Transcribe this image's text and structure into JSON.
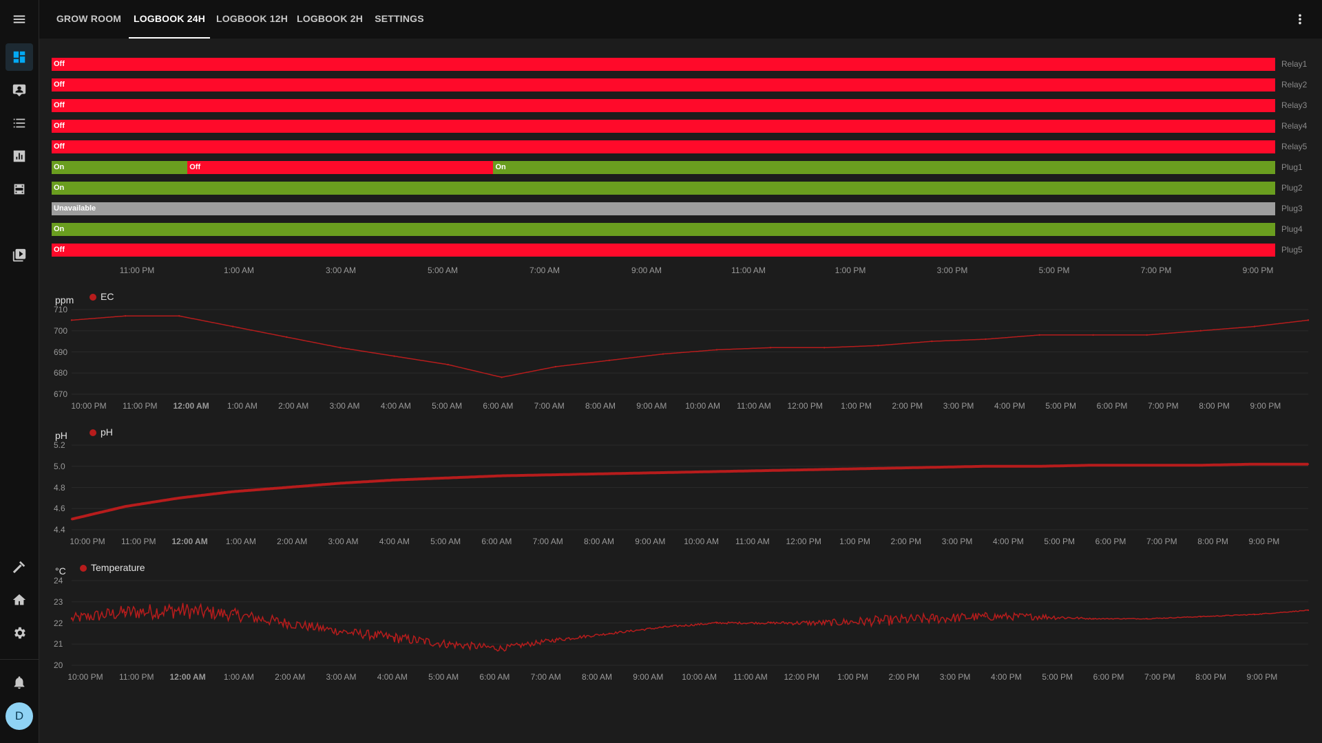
{
  "nav": {
    "tabs": [
      {
        "label": "GROW ROOM",
        "active": false
      },
      {
        "label": "LOGBOOK 24H",
        "active": true
      },
      {
        "label": "LOGBOOK 12H",
        "active": false
      },
      {
        "label": "LOGBOOK 2H",
        "active": false
      },
      {
        "label": "SETTINGS",
        "active": false
      }
    ],
    "more_icon": "more-vert-icon"
  },
  "sidebar": {
    "menu_icon": "menu-icon",
    "items": [
      {
        "icon": "dashboard-icon",
        "active": true
      },
      {
        "icon": "person-badge-icon"
      },
      {
        "icon": "list-icon"
      },
      {
        "icon": "bar-chart-icon"
      },
      {
        "icon": "film-icon"
      },
      {
        "icon": "media-play-icon"
      }
    ],
    "bottom_items": [
      {
        "icon": "hammer-icon"
      },
      {
        "icon": "home-gear-icon"
      },
      {
        "icon": "gear-icon"
      },
      {
        "icon": "bell-icon"
      }
    ],
    "avatar_letter": "D",
    "accent_color": "#03a9f4"
  },
  "timeline": {
    "colors": {
      "on": "#6a9e1f",
      "off": "#ff0a2a",
      "unavailable": "#9e9e9e"
    },
    "rows": [
      {
        "label": "Relay1",
        "segments": [
          {
            "state": "off",
            "text": "Off",
            "from": 0,
            "to": 1
          }
        ]
      },
      {
        "label": "Relay2",
        "segments": [
          {
            "state": "off",
            "text": "Off",
            "from": 0,
            "to": 1
          }
        ]
      },
      {
        "label": "Relay3",
        "segments": [
          {
            "state": "off",
            "text": "Off",
            "from": 0,
            "to": 1
          }
        ]
      },
      {
        "label": "Relay4",
        "segments": [
          {
            "state": "off",
            "text": "Off",
            "from": 0,
            "to": 1
          }
        ]
      },
      {
        "label": "Relay5",
        "segments": [
          {
            "state": "off",
            "text": "Off",
            "from": 0,
            "to": 1
          }
        ]
      },
      {
        "label": "Plug1",
        "segments": [
          {
            "state": "on",
            "text": "On",
            "from": 0,
            "to": 0.111
          },
          {
            "state": "off",
            "text": "Off",
            "from": 0.111,
            "to": 0.361
          },
          {
            "state": "on",
            "text": "On",
            "from": 0.361,
            "to": 1
          }
        ]
      },
      {
        "label": "Plug2",
        "segments": [
          {
            "state": "on",
            "text": "On",
            "from": 0,
            "to": 1
          }
        ]
      },
      {
        "label": "Plug3",
        "segments": [
          {
            "state": "unavailable",
            "text": "Unavailable",
            "from": 0,
            "to": 1
          }
        ]
      },
      {
        "label": "Plug4",
        "segments": [
          {
            "state": "on",
            "text": "On",
            "from": 0,
            "to": 1
          }
        ]
      },
      {
        "label": "Plug5",
        "segments": [
          {
            "state": "off",
            "text": "Off",
            "from": 0,
            "to": 1
          }
        ]
      }
    ],
    "ticks": [
      "11:00 PM",
      "1:00 AM",
      "3:00 AM",
      "5:00 AM",
      "7:00 AM",
      "9:00 AM",
      "11:00 AM",
      "1:00 PM",
      "3:00 PM",
      "5:00 PM",
      "7:00 PM",
      "9:00 PM"
    ]
  },
  "chart_data": [
    {
      "type": "line",
      "unit": "ppm",
      "series": [
        {
          "name": "EC",
          "color": "#b71c1c"
        }
      ],
      "ylim": [
        670,
        710
      ],
      "yticks": [
        "710",
        "700",
        "690",
        "680",
        "670"
      ],
      "x": [
        "9:30 PM",
        "11:00 PM",
        "12:00 AM",
        "1:00 AM",
        "2:00 AM",
        "3:00 AM",
        "4:00 AM",
        "5:00 AM",
        "5:50 AM",
        "7:00 AM",
        "8:00 AM",
        "9:00 AM",
        "10:00 AM",
        "11:00 AM",
        "12:00 PM",
        "1:00 PM",
        "2:00 PM",
        "3:00 PM",
        "4:00 PM",
        "5:00 PM",
        "6:00 PM",
        "7:00 PM",
        "8:00 PM",
        "9:30 PM"
      ],
      "values": [
        705,
        707,
        707,
        702,
        697,
        692,
        688,
        684,
        678,
        683,
        686,
        689,
        691,
        692,
        692,
        693,
        695,
        696,
        698,
        698,
        698,
        700,
        702,
        705
      ],
      "xticks": [
        "10:00 PM",
        "11:00 PM",
        "12:00 AM",
        "1:00 AM",
        "2:00 AM",
        "3:00 AM",
        "4:00 AM",
        "5:00 AM",
        "6:00 AM",
        "7:00 AM",
        "8:00 AM",
        "9:00 AM",
        "10:00 AM",
        "11:00 AM",
        "12:00 PM",
        "1:00 PM",
        "2:00 PM",
        "3:00 PM",
        "4:00 PM",
        "5:00 PM",
        "6:00 PM",
        "7:00 PM",
        "8:00 PM",
        "9:00 PM"
      ]
    },
    {
      "type": "line",
      "unit": "pH",
      "series": [
        {
          "name": "pH",
          "color": "#b71c1c"
        }
      ],
      "ylim": [
        4.4,
        5.2
      ],
      "yticks": [
        "5.2",
        "5.0",
        "4.8",
        "4.6",
        "4.4"
      ],
      "x": [
        "9:30 PM",
        "11:00 PM",
        "12:00 AM",
        "1:00 AM",
        "2:00 AM",
        "3:00 AM",
        "4:00 AM",
        "5:00 AM",
        "6:00 AM",
        "7:00 AM",
        "8:00 AM",
        "9:00 AM",
        "10:00 AM",
        "11:00 AM",
        "12:00 PM",
        "1:00 PM",
        "2:00 PM",
        "3:00 PM",
        "4:00 PM",
        "5:00 PM",
        "6:00 PM",
        "7:00 PM",
        "8:00 PM",
        "9:30 PM"
      ],
      "values": [
        4.5,
        4.62,
        4.7,
        4.76,
        4.8,
        4.84,
        4.87,
        4.89,
        4.91,
        4.92,
        4.93,
        4.94,
        4.95,
        4.96,
        4.97,
        4.98,
        4.99,
        5.0,
        5.0,
        5.01,
        5.01,
        5.01,
        5.02,
        5.02
      ],
      "xticks": [
        "10:00 PM",
        "11:00 PM",
        "12:00 AM",
        "1:00 AM",
        "2:00 AM",
        "3:00 AM",
        "4:00 AM",
        "5:00 AM",
        "6:00 AM",
        "7:00 AM",
        "8:00 AM",
        "9:00 AM",
        "10:00 AM",
        "11:00 AM",
        "12:00 PM",
        "1:00 PM",
        "2:00 PM",
        "3:00 PM",
        "4:00 PM",
        "5:00 PM",
        "6:00 PM",
        "7:00 PM",
        "8:00 PM",
        "9:00 PM"
      ]
    },
    {
      "type": "line",
      "unit": "°C",
      "series": [
        {
          "name": "Temperature",
          "color": "#b71c1c"
        }
      ],
      "ylim": [
        20,
        24
      ],
      "yticks": [
        "24",
        "23",
        "22",
        "21",
        "20"
      ],
      "x": [
        "9:30 PM",
        "11:00 PM",
        "12:00 AM",
        "1:00 AM",
        "2:00 AM",
        "3:00 AM",
        "4:00 AM",
        "5:00 AM",
        "6:00 AM",
        "7:00 AM",
        "8:00 AM",
        "9:00 AM",
        "10:00 AM",
        "11:00 AM",
        "12:00 PM",
        "1:00 PM",
        "2:00 PM",
        "3:00 PM",
        "4:00 PM",
        "5:00 PM",
        "6:00 PM",
        "7:00 PM",
        "8:00 PM",
        "9:30 PM"
      ],
      "values": [
        22.2,
        22.5,
        22.6,
        22.4,
        22.0,
        21.6,
        21.3,
        21.0,
        20.8,
        21.2,
        21.5,
        21.8,
        22.0,
        22.0,
        22.0,
        22.1,
        22.2,
        22.3,
        22.3,
        22.2,
        22.2,
        22.3,
        22.4,
        22.6
      ],
      "noise": [
        0.25,
        0.35,
        0.4,
        0.3,
        0.25,
        0.2,
        0.25,
        0.2,
        0.15,
        0.1,
        0.05,
        0.05,
        0.05,
        0.05,
        0.15,
        0.25,
        0.25,
        0.2,
        0.15,
        0.02,
        0.02,
        0.02,
        0.02,
        0.02
      ],
      "xticks": [
        "10:00 PM",
        "11:00 PM",
        "12:00 AM",
        "1:00 AM",
        "2:00 AM",
        "3:00 AM",
        "4:00 AM",
        "5:00 AM",
        "6:00 AM",
        "7:00 AM",
        "8:00 AM",
        "9:00 AM",
        "10:00 AM",
        "11:00 AM",
        "12:00 PM",
        "1:00 PM",
        "2:00 PM",
        "3:00 PM",
        "4:00 PM",
        "5:00 PM",
        "6:00 PM",
        "7:00 PM",
        "8:00 PM",
        "9:00 PM"
      ]
    }
  ]
}
